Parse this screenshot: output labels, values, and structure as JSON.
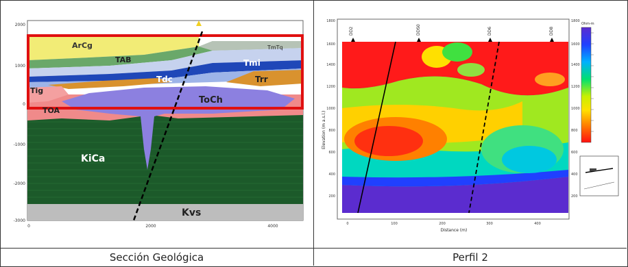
{
  "captions": {
    "left": "Sección Geológica",
    "right": "Perfil 2"
  },
  "geo_section": {
    "y_ticks": [
      "2000",
      "1000",
      "0",
      "-1000",
      "-2000",
      "-3000"
    ],
    "x_ticks": [
      "0",
      "2000",
      "4000"
    ],
    "units": [
      "ArCg",
      "TAB",
      "TmTq",
      "Tmi",
      "Tdc",
      "Trr",
      "Tig",
      "ToCh",
      "TOA",
      "KiCa",
      "Kvs"
    ],
    "colors": {
      "ArCg": "#f2ec76",
      "TAB": "#6aa86a",
      "TmTq": "#c9c9c9",
      "Tmi": "#1f47b8",
      "Tdc": "#d9922e",
      "Trr": "#d9922e",
      "ToCh": "#8c80e0",
      "TOA": "#f08a8a",
      "KiCa": "#1c5a2a",
      "Kvs": "#bdbdbd",
      "highlight": "#e01010"
    }
  },
  "profile": {
    "y_label": "Elevation (m a.s.l.)",
    "x_label": "Distance (m)",
    "top_labels": [
      "DD2",
      "DDS0",
      "DD6",
      "DD8"
    ],
    "y_ticks": [
      "1800",
      "1600",
      "1400",
      "1200",
      "1000",
      "800",
      "600",
      "400",
      "200"
    ],
    "x_ticks": [
      "0",
      "100",
      "200",
      "300",
      "400"
    ],
    "colorbar_title": "Ohm-m",
    "colorbar_ticks": [
      "1800",
      "1600",
      "1400",
      "1200",
      "1000",
      "800",
      "600",
      "400",
      "200",
      "0"
    ]
  }
}
